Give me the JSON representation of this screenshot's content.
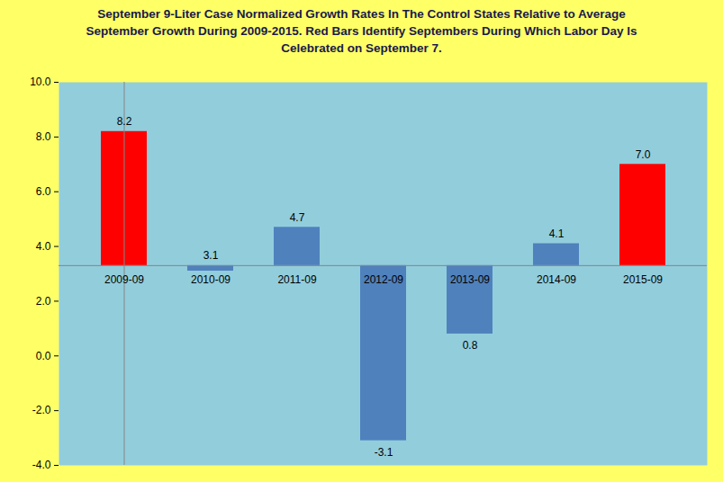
{
  "chart_data": {
    "type": "bar",
    "title": "September 9-Liter Case Normalized Growth Rates In The Control States Relative to Average September Growth During 2009-2015. Red Bars Identify Septembers During Which Labor Day Is Celebrated on September 7.",
    "categories": [
      "2009-09",
      "2010-09",
      "2011-09",
      "2012-09",
      "2013-09",
      "2014-09",
      "2015-09"
    ],
    "values": [
      8.2,
      3.1,
      4.7,
      -3.1,
      0.8,
      4.1,
      7.0
    ],
    "value_labels": [
      "8.2",
      "3.1",
      "4.7",
      "-3.1",
      "0.8",
      "4.1",
      "7.0"
    ],
    "baseline": 3.3,
    "colors": [
      "#ff0000",
      "#4f81bd",
      "#4f81bd",
      "#4f81bd",
      "#4f81bd",
      "#4f81bd",
      "#ff0000"
    ],
    "ylim": [
      -4,
      10
    ],
    "yticks": [
      {
        "value": -4,
        "label": "-4.0"
      },
      {
        "value": -2,
        "label": "-2.0"
      },
      {
        "value": 0,
        "label": "0.0"
      },
      {
        "value": 2,
        "label": "2.0"
      },
      {
        "value": 4,
        "label": "4.0"
      },
      {
        "value": 6,
        "label": "6.0"
      },
      {
        "value": 8,
        "label": "8.0"
      },
      {
        "value": 10,
        "label": "10.0"
      }
    ],
    "grid": false,
    "data_labels": true
  }
}
